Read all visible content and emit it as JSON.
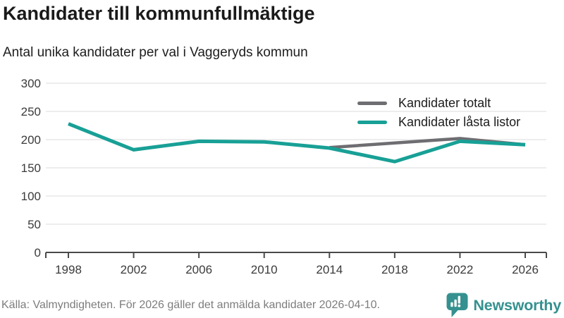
{
  "title": "Kandidater till kommunfullmäktige",
  "subtitle": "Antal unika kandidater per val i Vaggeryds kommun",
  "legend": [
    {
      "label": "Kandidater totalt",
      "color": "#6e6e72"
    },
    {
      "label": "Kandidater låsta listor",
      "color": "#18a096"
    }
  ],
  "footer": {
    "source": "Källa: Valmyndigheten. För 2026 gäller det anmälda kandidater 2026-04-10."
  },
  "logo": {
    "text": "Newsworthy",
    "color": "#35918f",
    "icon": "speech-bubble-bar-chart-icon"
  },
  "chart_data": {
    "type": "line",
    "title": "Kandidater till kommunfullmäktige",
    "subtitle": "Antal unika kandidater per val i Vaggeryds kommun",
    "categories": [
      "1998",
      "2002",
      "2006",
      "2010",
      "2014",
      "2018",
      "2022",
      "2026"
    ],
    "series": [
      {
        "name": "Kandidater totalt",
        "color": "#6e6e72",
        "values": [
          null,
          null,
          null,
          null,
          186,
          194,
          202,
          191
        ]
      },
      {
        "name": "Kandidater låsta listor",
        "color": "#18a096",
        "values": [
          228,
          182,
          197,
          196,
          185,
          161,
          197,
          191
        ]
      }
    ],
    "xlabel": "",
    "ylabel": "",
    "ylim": [
      0,
      300
    ],
    "yticks": [
      0,
      50,
      100,
      150,
      200,
      250,
      300
    ],
    "grid": "horizontal",
    "gridline_color": "#e7e7e7",
    "axis_color": "#4a4a4a",
    "tick_label_color": "#3b3b3b",
    "legend_position": "top-right"
  }
}
